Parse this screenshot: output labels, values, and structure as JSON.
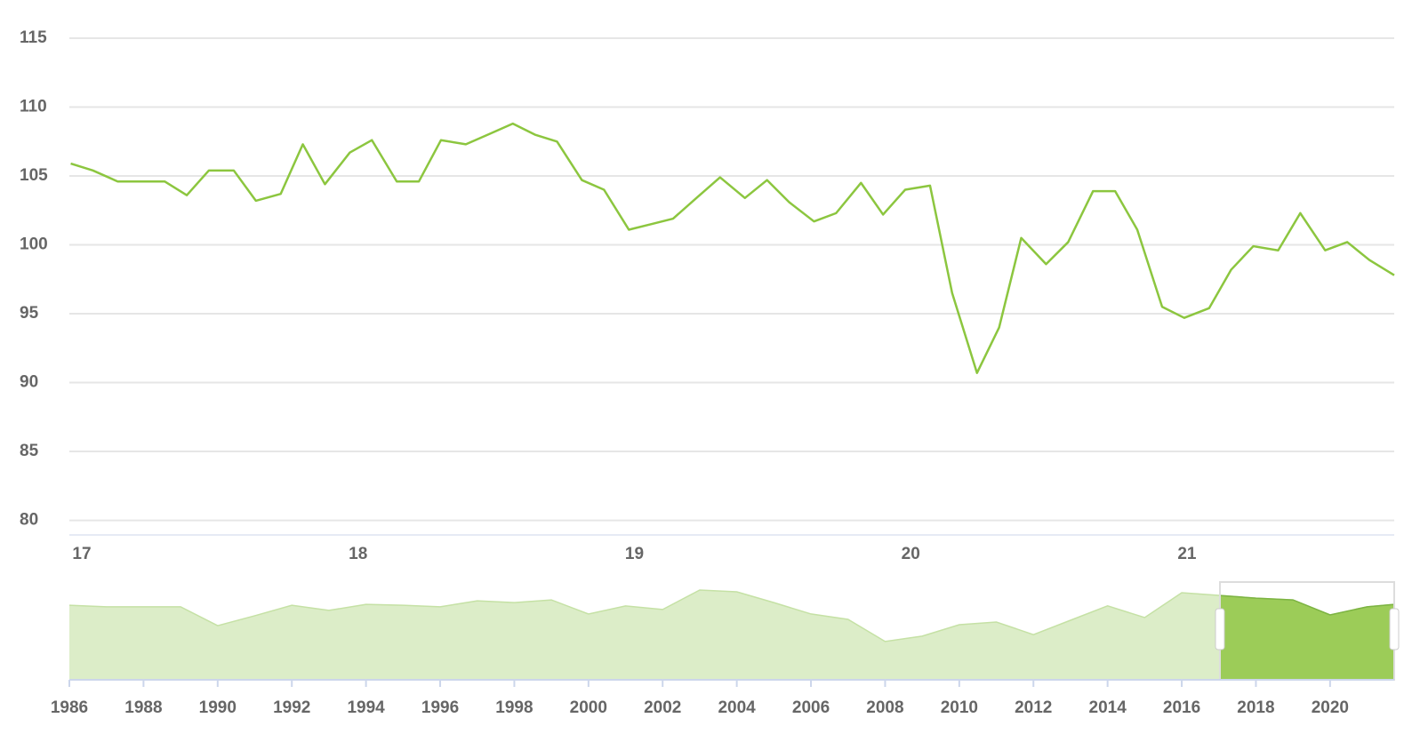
{
  "chart_data": {
    "type": "line",
    "x": [
      16.96,
      17.04,
      17.13,
      17.21,
      17.3,
      17.38,
      17.46,
      17.55,
      17.63,
      17.72,
      17.8,
      17.88,
      17.97,
      18.05,
      18.14,
      18.22,
      18.3,
      18.39,
      18.47,
      18.56,
      18.64,
      18.72,
      18.81,
      18.89,
      18.98,
      19.06,
      19.14,
      19.23,
      19.31,
      19.4,
      19.48,
      19.56,
      19.65,
      19.73,
      19.82,
      19.9,
      19.98,
      20.07,
      20.15,
      20.24,
      20.32,
      20.4,
      20.49,
      20.57,
      20.66,
      20.74,
      20.82,
      20.91,
      20.99,
      21.08,
      21.16,
      21.24,
      21.33,
      21.41,
      21.5,
      21.58,
      21.66,
      21.75
    ],
    "series": [
      {
        "color": "#8cc63f",
        "values": [
          105.9,
          105.4,
          104.6,
          104.6,
          104.6,
          103.6,
          105.4,
          105.4,
          103.2,
          103.7,
          107.3,
          104.4,
          106.7,
          107.6,
          104.6,
          104.6,
          107.6,
          107.3,
          108.0,
          108.8,
          108.0,
          107.5,
          104.7,
          104.0,
          101.1,
          101.5,
          101.9,
          103.5,
          104.9,
          103.4,
          104.7,
          103.1,
          101.7,
          102.3,
          104.5,
          102.2,
          104.0,
          104.3,
          96.5,
          90.7,
          94.0,
          100.5,
          98.6,
          100.2,
          103.9,
          103.9,
          101.1,
          95.5,
          94.7,
          95.4,
          98.2,
          99.9,
          99.6,
          102.3,
          99.6,
          100.2,
          98.9,
          97.8
        ]
      }
    ],
    "xlim": [
      16.955,
      21.75
    ],
    "xticks": [
      17,
      18,
      19,
      20,
      21
    ],
    "ylim": [
      78.94,
      115
    ],
    "yticks": [
      80,
      85,
      90,
      95,
      100,
      105,
      110,
      115
    ],
    "grid": true,
    "navigator": {
      "type": "area",
      "x": [
        1986,
        1987,
        1988,
        1989,
        1990,
        1991,
        1992,
        1993,
        1994,
        1995,
        1996,
        1997,
        1998,
        1999,
        2000,
        2001,
        2002,
        2003,
        2004,
        2005,
        2006,
        2007,
        2008,
        2009,
        2010,
        2011,
        2012,
        2013,
        2014,
        2015,
        2016,
        2017,
        2018,
        2019,
        2020,
        2021,
        2021.73
      ],
      "values": [
        104.9,
        104.4,
        104.4,
        104.4,
        98.1,
        101.4,
        104.9,
        103.2,
        105.2,
        104.9,
        104.4,
        106.4,
        105.8,
        106.7,
        102.0,
        104.7,
        103.5,
        110.0,
        109.4,
        105.8,
        102.0,
        100.2,
        92.8,
        94.6,
        98.4,
        99.3,
        95.1,
        99.9,
        104.7,
        100.8,
        109.1,
        108.2,
        107.3,
        106.7,
        101.7,
        104.4,
        105.2
      ],
      "color": "#dcedc8",
      "selected_color": "#9ccc58",
      "xlim": [
        1986,
        2021.73
      ],
      "ylim": [
        80,
        112.67
      ],
      "xticks": [
        1986,
        1988,
        1990,
        1992,
        1994,
        1996,
        1998,
        2000,
        2002,
        2004,
        2006,
        2008,
        2010,
        2012,
        2014,
        2016,
        2018,
        2020
      ],
      "range": [
        2017.03,
        2021.73
      ]
    }
  }
}
